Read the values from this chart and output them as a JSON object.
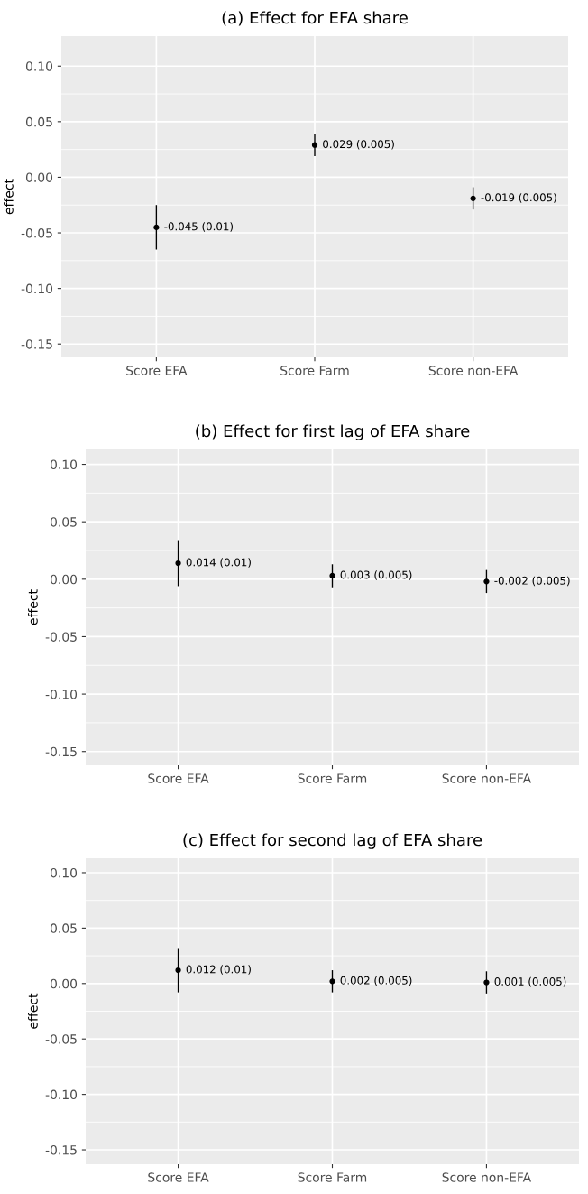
{
  "chart_data": [
    {
      "type": "scatter",
      "title": "(a) Effect for EFA share",
      "ylabel": "effect",
      "categories": [
        "Score EFA",
        "Score Farm",
        "Score non-EFA"
      ],
      "series": [
        {
          "color": "#000000",
          "values": [
            -0.045,
            0.029,
            -0.019
          ],
          "errors": [
            0.02,
            0.01,
            0.01
          ],
          "value_labels": [
            "-0.045 (0.01)",
            "0.029 (0.005)",
            "-0.019 (0.005)"
          ]
        }
      ],
      "ylim": [
        -0.162,
        0.127
      ],
      "yticks": [
        {
          "value": -0.15,
          "label": "-0.15"
        },
        {
          "value": -0.1,
          "label": "-0.10"
        },
        {
          "value": -0.05,
          "label": "-0.05"
        },
        {
          "value": 0,
          "label": "0.00"
        },
        {
          "value": 0.05,
          "label": "0.05"
        },
        {
          "value": 0.1,
          "label": "0.10"
        }
      ],
      "grid": true,
      "marker": "circle"
    },
    {
      "type": "scatter",
      "title": "(b) Effect for first lag of EFA share",
      "ylabel": "effect",
      "categories": [
        "Score EFA",
        "Score Farm",
        "Score non-EFA"
      ],
      "series": [
        {
          "color": "#000000",
          "values": [
            0.014,
            0.003,
            -0.002
          ],
          "errors": [
            0.02,
            0.01,
            0.01
          ],
          "value_labels": [
            "0.014 (0.01)",
            "0.003 (0.005)",
            "-0.002 (0.005)"
          ]
        }
      ],
      "ylim": [
        -0.162,
        0.113
      ],
      "yticks": [
        {
          "value": -0.15,
          "label": "-0.15"
        },
        {
          "value": -0.1,
          "label": "-0.10"
        },
        {
          "value": -0.05,
          "label": "-0.05"
        },
        {
          "value": 0,
          "label": "0.00"
        },
        {
          "value": 0.05,
          "label": "0.05"
        },
        {
          "value": 0.1,
          "label": "0.10"
        }
      ],
      "grid": true,
      "marker": "circle"
    },
    {
      "type": "scatter",
      "title": "(c) Effect for second lag of EFA share",
      "ylabel": "effect",
      "categories": [
        "Score EFA",
        "Score Farm",
        "Score non-EFA"
      ],
      "series": [
        {
          "color": "#000000",
          "values": [
            0.012,
            0.002,
            0.001
          ],
          "errors": [
            0.02,
            0.01,
            0.01
          ],
          "value_labels": [
            "0.012 (0.01)",
            "0.002 (0.005)",
            "0.001 (0.005)"
          ]
        }
      ],
      "ylim": [
        -0.163,
        0.113
      ],
      "yticks": [
        {
          "value": -0.15,
          "label": "-0.15"
        },
        {
          "value": -0.1,
          "label": "-0.10"
        },
        {
          "value": -0.05,
          "label": "-0.05"
        },
        {
          "value": 0,
          "label": "0.00"
        },
        {
          "value": 0.05,
          "label": "0.05"
        },
        {
          "value": 0.1,
          "label": "0.10"
        }
      ],
      "grid": true,
      "marker": "circle"
    }
  ]
}
